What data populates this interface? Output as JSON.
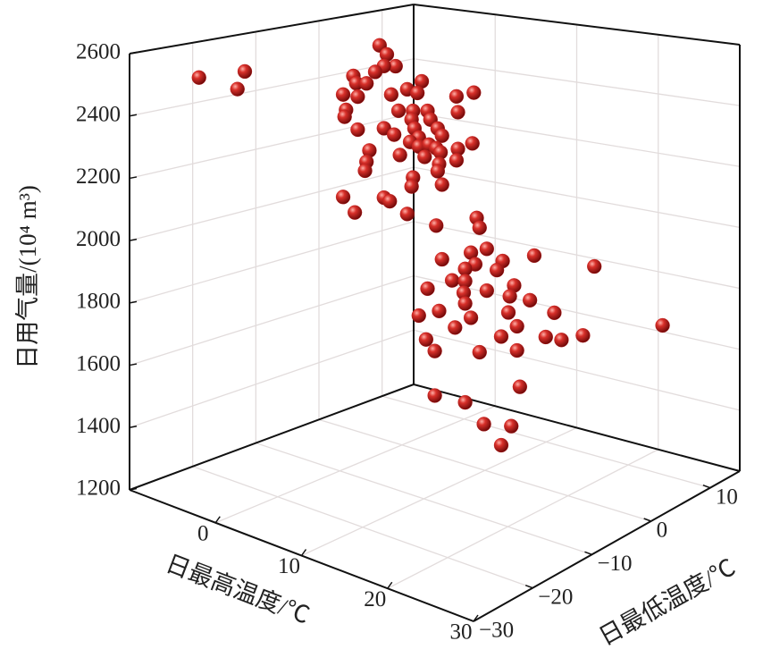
{
  "chart_data": {
    "type": "scatter3d",
    "x_label": "日最高温度/℃",
    "y_label": "日最低温度/℃",
    "z_label": "日用气量/(10⁴ m³)",
    "color": "#c41a1a",
    "grid": true,
    "xlim": [
      -10,
      30
    ],
    "xticks": [
      0,
      10,
      20,
      30
    ],
    "ylim": [
      -30,
      15
    ],
    "yticks": [
      {
        "value": -30,
        "label": "−30"
      },
      {
        "value": -20,
        "label": "−20"
      },
      {
        "value": -10,
        "label": "−10"
      },
      0,
      10
    ],
    "zlim": [
      1200,
      2600
    ],
    "zticks": [
      1200,
      1400,
      1600,
      1800,
      2000,
      2200,
      2400,
      2600
    ],
    "x": [
      -10.0,
      -7.4,
      -6.9,
      2.3,
      2.8,
      3.4,
      2.6,
      2.0,
      0.5,
      0.7,
      1.4,
      -0.2,
      0.8,
      0.0,
      -0.1,
      3.1,
      4.2,
      5.2,
      4.9,
      7.6,
      8.8,
      7.7,
      3.6,
      4.6,
      5.6,
      0.8,
      2.6,
      3.3,
      4.5,
      4.7,
      5.8,
      6.3,
      6.6,
      5.0,
      4.4,
      1.6,
      1.4,
      1.3,
      3.7,
      5.0,
      5.7,
      6.2,
      6.5,
      5.4,
      6.4,
      7.7,
      8.7,
      7.6,
      -0.2,
      0.6,
      2.6,
      3.0,
      4.2,
      4.6,
      4.5,
      6.6,
      6.3,
      6.2,
      9.0,
      9.2,
      9.7,
      6.6,
      8.6,
      8.9,
      8.2,
      7.3,
      8.2,
      10.8,
      10.4,
      13.0,
      17.2,
      5.6,
      8.1,
      9.7,
      11.6,
      11.3,
      8.2,
      12.7,
      5.0,
      6.4,
      8.6,
      11.2,
      14.4,
      7.5,
      11.8,
      5.5,
      10.7,
      13.8,
      14.9,
      16.4,
      22.0,
      6.1,
      9.2,
      11.8,
      12.0,
      6.1,
      8.2,
      9.5,
      11.4,
      10.7
    ],
    "y": [
      -19.0,
      -16.4,
      -15.9,
      -6.7,
      -6.2,
      -5.6,
      -6.4,
      -7.0,
      -8.5,
      -8.3,
      -7.6,
      -9.2,
      -8.2,
      -9.0,
      -9.1,
      -5.9,
      -4.8,
      -3.8,
      -4.1,
      -1.4,
      -0.2,
      -1.3,
      -5.4,
      -4.4,
      -3.4,
      -8.2,
      -6.4,
      -5.7,
      -4.5,
      -4.3,
      -3.2,
      -2.7,
      -2.4,
      -4.0,
      -4.6,
      -7.4,
      -7.6,
      -7.7,
      -5.3,
      -4.0,
      -3.3,
      -2.8,
      -2.5,
      -3.6,
      -2.6,
      -1.3,
      -0.3,
      -1.4,
      -9.2,
      -8.4,
      -6.4,
      -6.0,
      -4.8,
      -4.4,
      -4.5,
      -2.4,
      -2.7,
      -2.8,
      0.0,
      0.2,
      0.7,
      -2.4,
      -0.4,
      -0.1,
      -0.8,
      -1.7,
      -0.8,
      1.8,
      1.4,
      4.0,
      8.2,
      -3.4,
      -0.9,
      0.7,
      2.6,
      2.3,
      -0.8,
      3.7,
      -4.0,
      -2.6,
      -0.4,
      2.2,
      5.4,
      -1.5,
      2.8,
      -3.5,
      1.7,
      4.8,
      5.9,
      7.4,
      13.0,
      -2.9,
      0.2,
      2.8,
      3.0,
      -2.9,
      -0.8,
      0.5,
      2.4,
      1.7
    ],
    "z": [
      2481,
      2451,
      2511,
      2615,
      2585,
      2546,
      2546,
      2526,
      2511,
      2487,
      2487,
      2448,
      2442,
      2397,
      2374,
      2451,
      2469,
      2496,
      2457,
      2445,
      2457,
      2392,
      2397,
      2397,
      2397,
      2332,
      2338,
      2317,
      2368,
      2338,
      2368,
      2338,
      2314,
      2308,
      2293,
      2263,
      2225,
      2195,
      2249,
      2278,
      2284,
      2272,
      2258,
      2243,
      2219,
      2269,
      2287,
      2231,
      2106,
      2055,
      2106,
      2094,
      2052,
      2174,
      2144,
      2150,
      2195,
      2013,
      2037,
      2004,
      1933,
      1900,
      1921,
      1882,
      1867,
      1829,
      1826,
      1891,
      1861,
      1906,
      1861,
      1802,
      1787,
      1793,
      1808,
      1772,
      1751,
      1757,
      1712,
      1727,
      1703,
      1718,
      1712,
      1671,
      1671,
      1632,
      1638,
      1632,
      1620,
      1632,
      1650,
      1593,
      1587,
      1590,
      1468,
      1444,
      1420,
      1346,
      1337,
      1274
    ]
  }
}
